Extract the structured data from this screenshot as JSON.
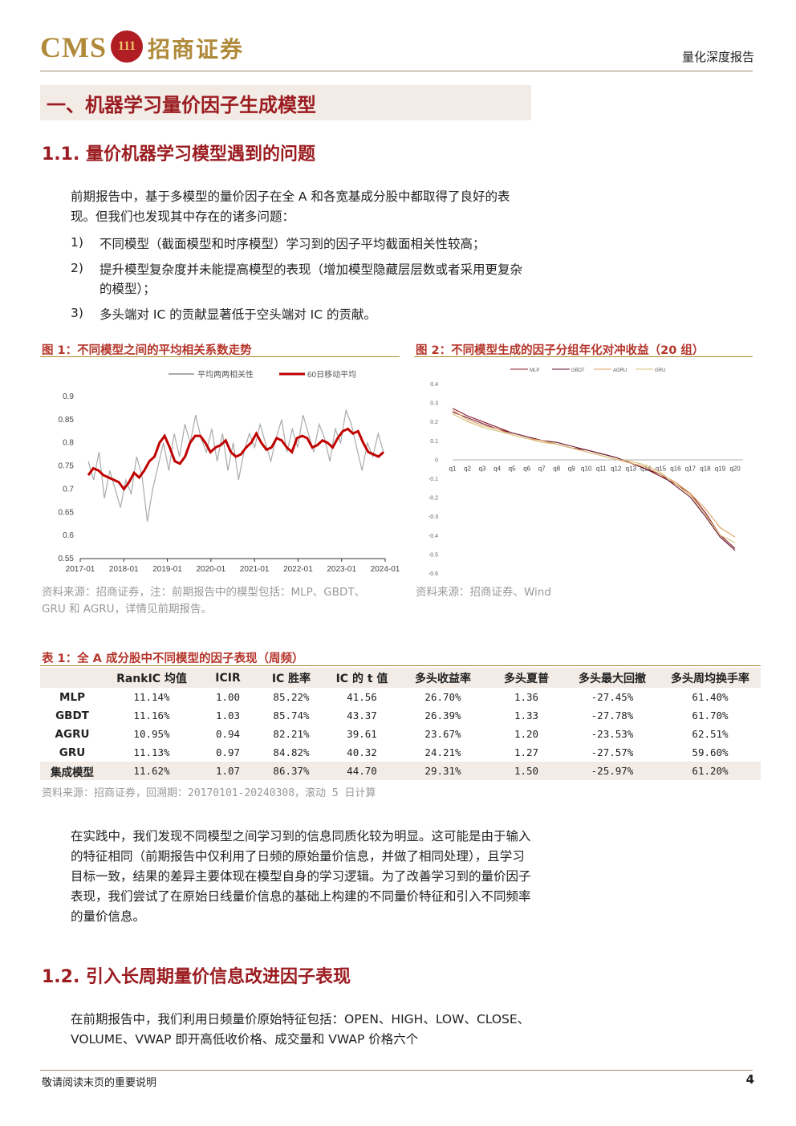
{
  "header": {
    "logo_cms": "CMS",
    "logo_badge": "111",
    "logo_cn": "招商证券",
    "report_type": "量化深度报告"
  },
  "section": {
    "title": "一、机器学习量价因子生成模型",
    "sub1": "1.1. 量价机器学习模型遇到的问题",
    "para1": "前期报告中，基于多模型的量价因子在全 A 和各宽基成分股中都取得了良好的表现。但我们也发现其中存在的诸多问题：",
    "list": [
      {
        "num": "1)",
        "text": "不同模型（截面模型和时序模型）学习到的因子平均截面相关性较高；"
      },
      {
        "num": "2)",
        "text": "提升模型复杂度并未能提高模型的表现（增加模型隐藏层层数或者采用更复杂的模型）；"
      },
      {
        "num": "3)",
        "text": "多头端对 IC 的贡献显著低于空头端对 IC 的贡献。"
      }
    ],
    "para2": "在实践中，我们发现不同模型之间学习到的信息同质化较为明显。这可能是由于输入的特征相同（前期报告中仅利用了日频的原始量价信息，并做了相同处理），且学习目标一致，结果的差异主要体现在模型自身的学习逻辑。为了改善学习到的量价因子表现，我们尝试了在原始日线量价信息的基础上构建的不同量价特征和引入不同频率的量价信息。",
    "sub2": "1.2. 引入长周期量价信息改进因子表现",
    "para3": "在前期报告中，我们利用日频量价原始特征包括：OPEN、HIGH、LOW、CLOSE、VOLUME、VWAP 即开高低收价格、成交量和 VWAP 价格六个"
  },
  "figure1": {
    "title": "图 1：不同模型之间的平均相关系数走势",
    "source": "资料来源：招商证券，注：前期报告中的模型包括：MLP、GBDT、GRU 和 AGRU，详情见前期报告。"
  },
  "figure2": {
    "title": "图 2：不同模型生成的因子分组年化对冲收益（20 组）",
    "source": "资料来源：招商证券、Wind"
  },
  "chart_data": [
    {
      "type": "line",
      "series": [
        {
          "name": "平均两两相关性",
          "color": "#aaaaaa",
          "values": [
            0.76,
            0.72,
            0.78,
            0.68,
            0.74,
            0.7,
            0.66,
            0.72,
            0.69,
            0.77,
            0.73,
            0.63,
            0.7,
            0.75,
            0.8,
            0.74,
            0.82,
            0.77,
            0.84,
            0.8,
            0.86,
            0.81,
            0.78,
            0.83,
            0.76,
            0.82,
            0.74,
            0.8,
            0.72,
            0.78,
            0.82,
            0.79,
            0.84,
            0.8,
            0.76,
            0.81,
            0.85,
            0.78,
            0.83,
            0.79,
            0.86,
            0.82,
            0.78,
            0.84,
            0.81,
            0.76,
            0.83,
            0.8,
            0.87,
            0.84,
            0.79,
            0.74,
            0.8,
            0.77,
            0.82,
            0.78
          ]
        },
        {
          "name": "60日移动平均",
          "color": "#c00000",
          "values": [
            0.73,
            0.745,
            0.74,
            0.73,
            0.725,
            0.72,
            0.715,
            0.7,
            0.715,
            0.735,
            0.725,
            0.74,
            0.76,
            0.77,
            0.8,
            0.815,
            0.79,
            0.76,
            0.755,
            0.77,
            0.8,
            0.815,
            0.815,
            0.8,
            0.78,
            0.79,
            0.795,
            0.805,
            0.78,
            0.77,
            0.775,
            0.79,
            0.8,
            0.82,
            0.8,
            0.785,
            0.79,
            0.81,
            0.805,
            0.79,
            0.78,
            0.81,
            0.815,
            0.81,
            0.79,
            0.795,
            0.805,
            0.8,
            0.79,
            0.81,
            0.825,
            0.83,
            0.82,
            0.825,
            0.8,
            0.78,
            0.775,
            0.77,
            0.78
          ]
        }
      ],
      "x_ticks": [
        "2017-01",
        "2018-01",
        "2019-01",
        "2020-01",
        "2021-01",
        "2022-01",
        "2023-01",
        "2024-01"
      ],
      "y_ticks": [
        "0.9",
        "0.85",
        "0.8",
        "0.75",
        "0.7",
        "0.65",
        "0.6",
        "0.55"
      ],
      "ylim": [
        0.55,
        0.9
      ],
      "legend": "top"
    },
    {
      "type": "line",
      "categories": [
        "q1",
        "q2",
        "q3",
        "q4",
        "q5",
        "q6",
        "q7",
        "q8",
        "q9",
        "q10",
        "q11",
        "q12",
        "q13",
        "q14",
        "q15",
        "q16",
        "q17",
        "q18",
        "q19",
        "q20"
      ],
      "series": [
        {
          "name": "MLP",
          "color": "#8b1a2b",
          "values": [
            0.27,
            0.23,
            0.2,
            0.17,
            0.14,
            0.12,
            0.1,
            0.08,
            0.06,
            0.05,
            0.03,
            0.01,
            -0.02,
            -0.05,
            -0.09,
            -0.13,
            -0.18,
            -0.28,
            -0.4,
            -0.47
          ]
        },
        {
          "name": "GBDT",
          "color": "#6b1630",
          "values": [
            0.25,
            0.22,
            0.19,
            0.16,
            0.14,
            0.12,
            0.1,
            0.09,
            0.07,
            0.05,
            0.03,
            0.01,
            -0.02,
            -0.05,
            -0.08,
            -0.14,
            -0.2,
            -0.3,
            -0.41,
            -0.48
          ]
        },
        {
          "name": "AGRU",
          "color": "#e0a060",
          "values": [
            0.26,
            0.21,
            0.18,
            0.16,
            0.13,
            0.11,
            0.1,
            0.08,
            0.06,
            0.04,
            0.02,
            0.0,
            -0.02,
            -0.04,
            -0.08,
            -0.12,
            -0.18,
            -0.26,
            -0.36,
            -0.41
          ]
        },
        {
          "name": "GRU",
          "color": "#d7c07a",
          "values": [
            0.24,
            0.2,
            0.17,
            0.15,
            0.13,
            0.11,
            0.09,
            0.08,
            0.06,
            0.04,
            0.02,
            0.0,
            -0.01,
            -0.03,
            -0.07,
            -0.13,
            -0.19,
            -0.29,
            -0.4,
            -0.44
          ]
        }
      ],
      "y_ticks": [
        "0.4",
        "0.3",
        "0.2",
        "0.1",
        "0",
        "-0.1",
        "-0.2",
        "-0.3",
        "-0.4",
        "-0.5",
        "-0.6"
      ],
      "ylim": [
        -0.6,
        0.4
      ],
      "legend": "top"
    }
  ],
  "table1": {
    "title": "表 1：全 A 成分股中不同模型的因子表现（周频）",
    "headers": [
      "",
      "RankIC 均值",
      "ICIR",
      "IC 胜率",
      "IC 的 t 值",
      "多头收益率",
      "多头夏普",
      "多头最大回撤",
      "多头周均换手率"
    ],
    "rows": [
      [
        "MLP",
        "11.14%",
        "1.00",
        "85.22%",
        "41.56",
        "26.70%",
        "1.36",
        "-27.45%",
        "61.40%"
      ],
      [
        "GBDT",
        "11.16%",
        "1.03",
        "85.74%",
        "43.37",
        "26.39%",
        "1.33",
        "-27.78%",
        "61.70%"
      ],
      [
        "AGRU",
        "10.95%",
        "0.94",
        "82.21%",
        "39.61",
        "23.67%",
        "1.20",
        "-23.53%",
        "62.51%"
      ],
      [
        "GRU",
        "11.13%",
        "0.97",
        "84.82%",
        "40.32",
        "24.21%",
        "1.27",
        "-27.57%",
        "59.60%"
      ],
      [
        "集成模型",
        "11.62%",
        "1.07",
        "86.37%",
        "44.70",
        "29.31%",
        "1.50",
        "-25.97%",
        "61.20%"
      ]
    ],
    "source": "资料来源：招商证券，回溯期：20170101-20240308，滚动 5 日计算"
  },
  "footer": {
    "note": "敬请阅读末页的重要说明",
    "page": "4"
  }
}
